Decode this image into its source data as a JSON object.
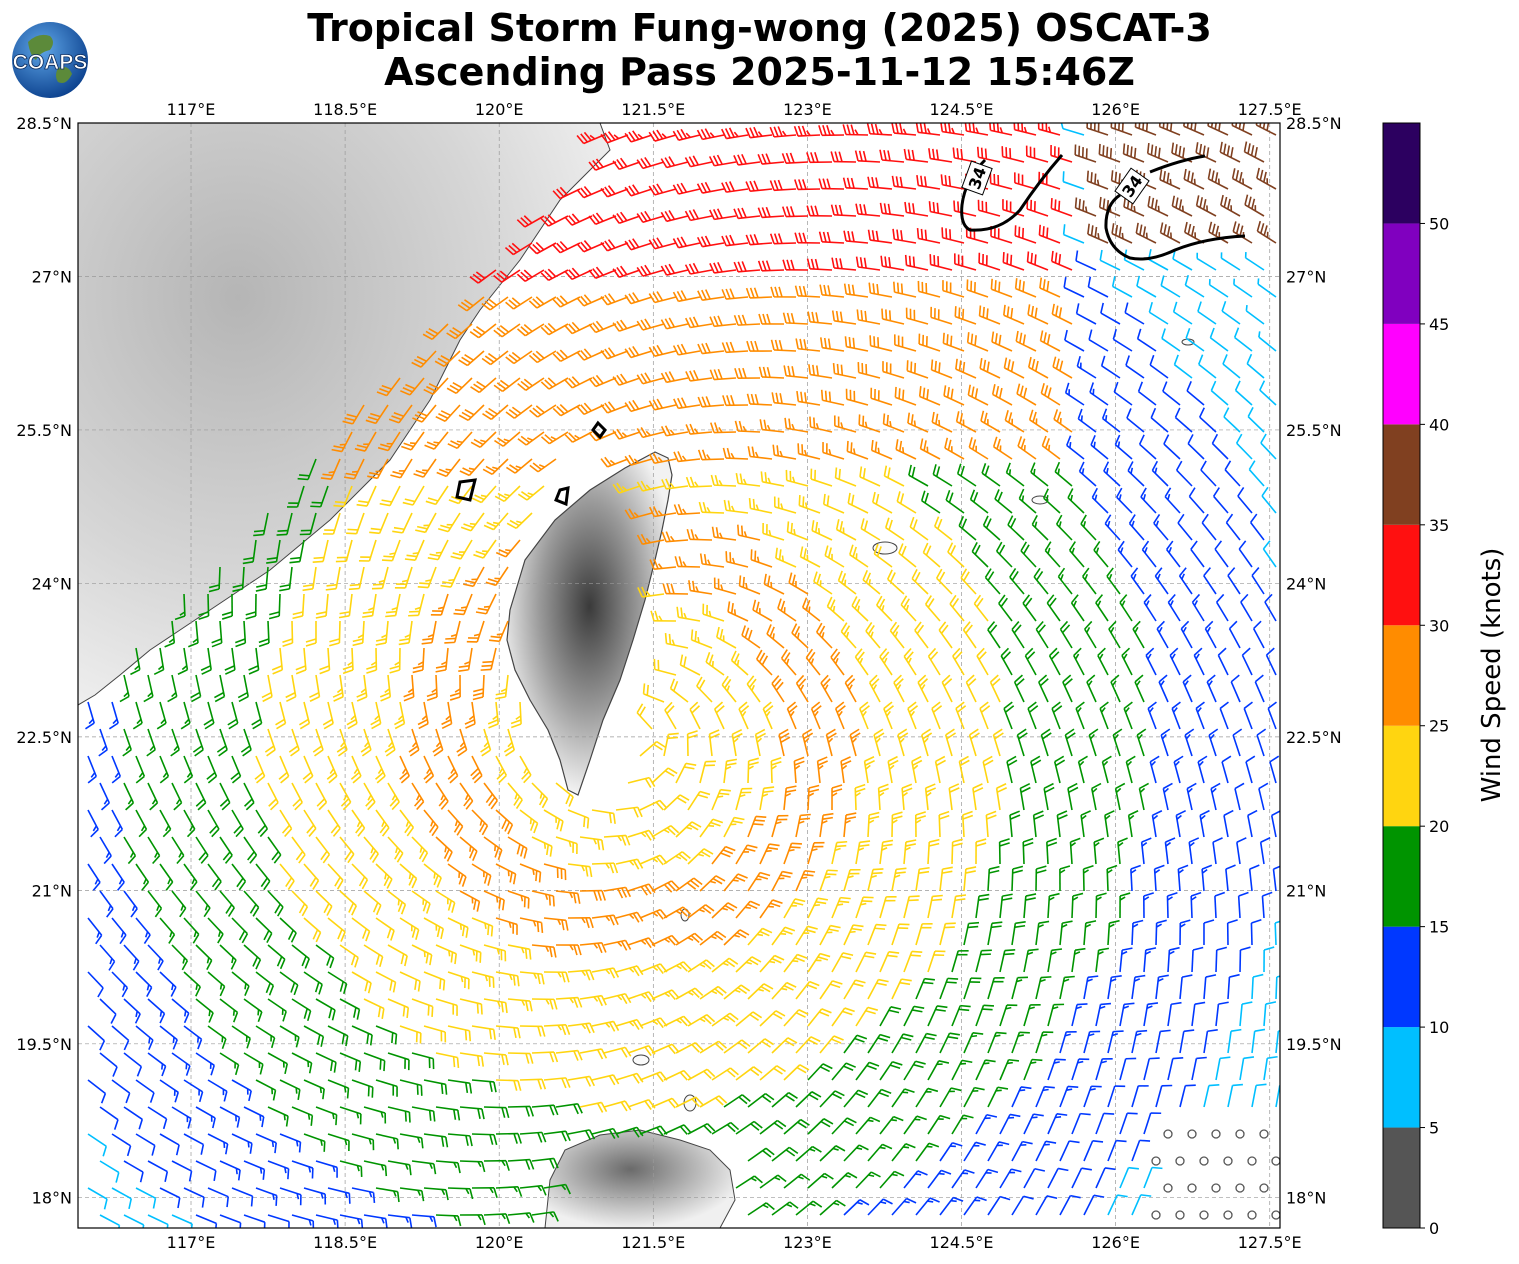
{
  "title": {
    "line1": "Tropical Storm Fung-wong (2025) OSCAT-3",
    "line2": "Ascending Pass 2025-11-12 15:46Z"
  },
  "logo": {
    "text": "COAPS",
    "icon": "globe-logo-icon"
  },
  "map": {
    "lon_range": [
      115.9,
      127.6
    ],
    "lat_range": [
      17.7,
      28.5
    ],
    "lon_ticks": [
      "117°E",
      "118.5°E",
      "120°E",
      "121.5°E",
      "123°E",
      "124.5°E",
      "126°E",
      "127.5°E"
    ],
    "lat_ticks": [
      "28.5°N",
      "27°N",
      "25.5°N",
      "24°N",
      "22.5°N",
      "21°N",
      "19.5°N",
      "18°N"
    ],
    "lon_tick_values": [
      117,
      118.5,
      120,
      121.5,
      123,
      124.5,
      126,
      127.5
    ],
    "lat_tick_values": [
      28.5,
      27,
      25.5,
      24,
      22.5,
      21,
      19.5,
      18
    ],
    "grid": "dashed",
    "storm_center": {
      "lon": 121.3,
      "lat": 22.5
    },
    "contour_label": "34"
  },
  "colorbar": {
    "label": "Wind Speed (knots)",
    "tick_labels": [
      "0",
      "5",
      "10",
      "15",
      "20",
      "25",
      "30",
      "35",
      "40",
      "45",
      "50"
    ],
    "bins": [
      {
        "min": 0,
        "max": 5,
        "color": "#555555"
      },
      {
        "min": 5,
        "max": 10,
        "color": "#00bfff"
      },
      {
        "min": 10,
        "max": 15,
        "color": "#0038ff"
      },
      {
        "min": 15,
        "max": 20,
        "color": "#009400"
      },
      {
        "min": 20,
        "max": 25,
        "color": "#ffd510"
      },
      {
        "min": 25,
        "max": 30,
        "color": "#ff8c00"
      },
      {
        "min": 30,
        "max": 35,
        "color": "#ff1010"
      },
      {
        "min": 35,
        "max": 40,
        "color": "#804020"
      },
      {
        "min": 40,
        "max": 45,
        "color": "#ff00ff"
      },
      {
        "min": 45,
        "max": 50,
        "color": "#8000bf"
      },
      {
        "min": 50,
        "max": 55,
        "color": "#2c0060"
      }
    ]
  }
}
